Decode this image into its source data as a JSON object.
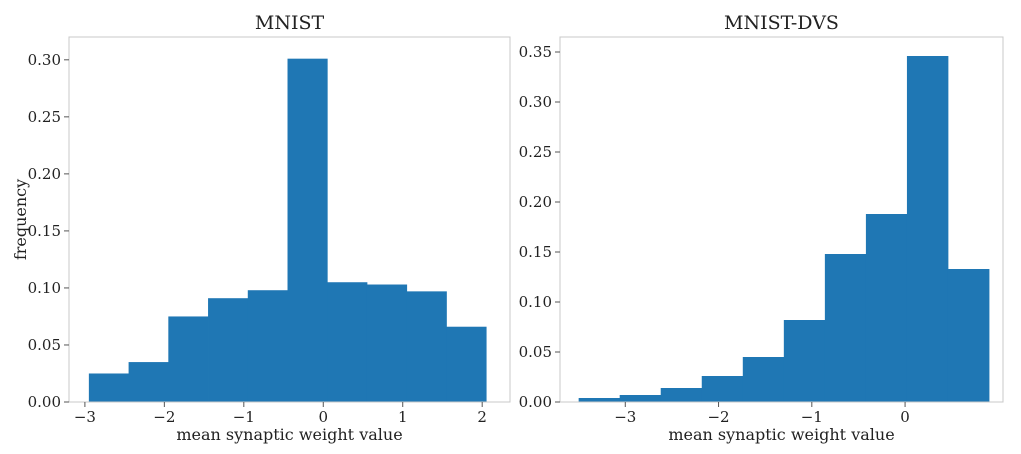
{
  "chart_data": [
    {
      "type": "bar",
      "title": "MNIST",
      "xlabel": "mean synaptic weight value",
      "ylabel": "frequency",
      "xlim": [
        -3.2,
        2.35
      ],
      "ylim": [
        0,
        0.32
      ],
      "xticks": [
        -3,
        -2,
        -1,
        0,
        1,
        2
      ],
      "xtick_labels": [
        "−3",
        "−2",
        "−1",
        "0",
        "1",
        "2"
      ],
      "yticks": [
        0,
        0.05,
        0.1,
        0.15,
        0.2,
        0.25,
        0.3
      ],
      "ytick_labels": [
        "0.00",
        "0.05",
        "0.10",
        "0.15",
        "0.20",
        "0.25",
        "0.30"
      ],
      "bin_edges": [
        -2.95,
        -2.45,
        -1.95,
        -1.45,
        -0.95,
        -0.45,
        0.05,
        0.55,
        1.05,
        1.55,
        2.05
      ],
      "values": [
        0.025,
        0.035,
        0.075,
        0.091,
        0.098,
        0.301,
        0.105,
        0.103,
        0.097,
        0.066
      ],
      "bar_color": "#1f77b4",
      "grid": false
    },
    {
      "type": "bar",
      "title": "MNIST-DVS",
      "xlabel": "mean synaptic weight value",
      "ylabel": "",
      "xlim": [
        -3.7,
        1.05
      ],
      "ylim": [
        0,
        0.365
      ],
      "xticks": [
        -3,
        -2,
        -1,
        0
      ],
      "xtick_labels": [
        "−3",
        "−2",
        "−1",
        "0"
      ],
      "yticks": [
        0,
        0.05,
        0.1,
        0.15,
        0.2,
        0.25,
        0.3,
        0.35
      ],
      "ytick_labels": [
        "0.00",
        "0.05",
        "0.10",
        "0.15",
        "0.20",
        "0.25",
        "0.30",
        "0.35"
      ],
      "bin_edges": [
        -3.5,
        -3.06,
        -2.62,
        -2.18,
        -1.74,
        -1.3,
        -0.86,
        -0.42,
        0.02,
        0.46,
        0.9
      ],
      "values": [
        0.004,
        0.007,
        0.014,
        0.026,
        0.045,
        0.082,
        0.148,
        0.188,
        0.346,
        0.133
      ],
      "bar_color": "#1f77b4",
      "grid": false
    }
  ]
}
